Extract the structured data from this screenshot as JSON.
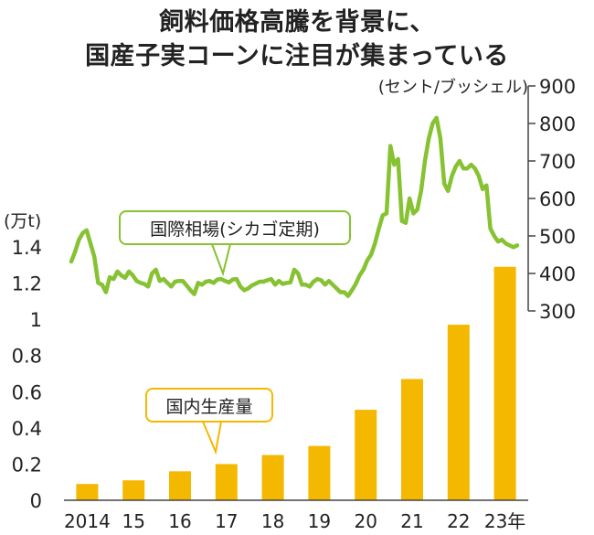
{
  "title_lines": [
    "飼料価格高騰を背景に、",
    "国産子実コーンに注目が集まっている"
  ],
  "colors": {
    "bar": "#f5b800",
    "line": "#86c232",
    "axis": "#444444",
    "text": "#222222"
  },
  "chart_data": {
    "type": "bar+line",
    "categories": [
      "2014",
      "15",
      "16",
      "17",
      "18",
      "19",
      "20",
      "21",
      "22",
      "23年"
    ],
    "bar_series": {
      "name": "国内生産量",
      "unit": "(万t)",
      "values": [
        0.09,
        0.11,
        0.16,
        0.2,
        0.25,
        0.3,
        0.5,
        0.67,
        0.97,
        1.29
      ],
      "ylim": [
        0,
        1.4
      ],
      "ticks": [
        "0",
        "0.2",
        "0.4",
        "0.6",
        "0.8",
        "1",
        "1.2",
        "1.4"
      ]
    },
    "line_series": {
      "name": "国際相場(シカゴ定期)",
      "unit": "(セント/ブッシェル)",
      "ylim": [
        300,
        900
      ],
      "ticks": [
        "300",
        "400",
        "500",
        "600",
        "700",
        "800",
        "900"
      ],
      "x_start": 2014.0,
      "x_end": 2024.0,
      "values": [
        432,
        458,
        490,
        508,
        515,
        480,
        445,
        375,
        370,
        350,
        390,
        385,
        405,
        395,
        388,
        405,
        395,
        380,
        375,
        372,
        365,
        400,
        410,
        380,
        385,
        375,
        365,
        378,
        380,
        380,
        368,
        355,
        345,
        375,
        370,
        378,
        380,
        375,
        384,
        385,
        380,
        376,
        384,
        385,
        365,
        355,
        360,
        368,
        373,
        378,
        378,
        382,
        385,
        370,
        380,
        372,
        375,
        376,
        410,
        400,
        370,
        370,
        365,
        378,
        385,
        382,
        370,
        380,
        370,
        360,
        350,
        350,
        340,
        355,
        372,
        395,
        410,
        435,
        450,
        480,
        520,
        555,
        560,
        740,
        690,
        705,
        540,
        535,
        600,
        560,
        570,
        620,
        700,
        760,
        800,
        815,
        760,
        640,
        620,
        660,
        685,
        700,
        680,
        680,
        690,
        680,
        660,
        625,
        635,
        520,
        500,
        485,
        490,
        480,
        475,
        470,
        475
      ]
    },
    "annotations": [
      "国際相場(シカゴ定期)",
      "国内生産量"
    ]
  }
}
